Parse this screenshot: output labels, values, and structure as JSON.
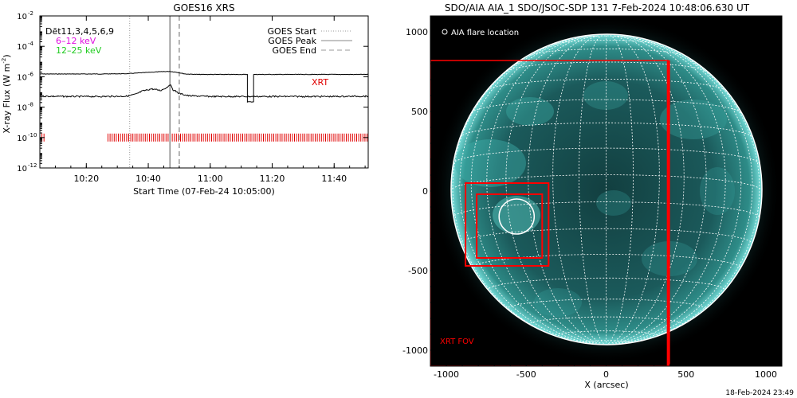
{
  "chart_data": [
    {
      "type": "line",
      "title": "GOES16 XRS",
      "xlabel": "Start Time (07-Feb-24 10:05:00)",
      "ylabel": "X-ray Flux (W m⁻²)",
      "ylabel_base": "X-ray Flux (W m",
      "ylabel_sup": "-2",
      "ylabel_end": ")",
      "y_scale": "log",
      "xlim": [
        "10:05",
        "11:51"
      ],
      "ylim": [
        1e-12,
        0.01
      ],
      "x_ticks": [
        "10:20",
        "10:40",
        "11:00",
        "11:20",
        "11:40"
      ],
      "y_ticks": [
        {
          "value": -12,
          "base": "10",
          "exp": "-12"
        },
        {
          "value": -10,
          "base": "10",
          "exp": "-10"
        },
        {
          "value": -8,
          "base": "10",
          "exp": "-8"
        },
        {
          "value": -6,
          "base": "10",
          "exp": "-6"
        },
        {
          "value": -4,
          "base": "10",
          "exp": "-4"
        },
        {
          "value": -2,
          "base": "10",
          "exp": "-2"
        }
      ],
      "legend_left": [
        {
          "label": "Dēt11,3,4,5,6,9",
          "color": "#000000"
        },
        {
          "label": "6–12 keV",
          "color": "#e010e0"
        },
        {
          "label": "12–25 keV",
          "color": "#22cc22"
        }
      ],
      "legend_right": [
        {
          "label": "GOES Start",
          "style": "dotted",
          "color": "#9a9a9a"
        },
        {
          "label": "GOES Peak",
          "style": "solid",
          "color": "#8a8a8a"
        },
        {
          "label": "GOES End",
          "style": "dashed",
          "color": "#9a9a9a"
        }
      ],
      "event_lines": {
        "start": "10:34",
        "peak": "10:47",
        "end": "10:50"
      },
      "xrt_label": "XRT",
      "xrt_color": "#e00000",
      "xrt_exposures": {
        "segments": [
          [
            "10:05",
            "10:07"
          ],
          [
            "10:27",
            "11:51"
          ]
        ],
        "flux_level": 1e-10
      },
      "series": [
        {
          "name": "",
          "color": "#000000",
          "points": [
            [
              "10:05",
              -5.82
            ],
            [
              "10:15",
              -5.82
            ],
            [
              "10:25",
              -5.82
            ],
            [
              "10:33",
              -5.8
            ],
            [
              "10:37",
              -5.75
            ],
            [
              "10:41",
              -5.7
            ],
            [
              "10:45",
              -5.66
            ],
            [
              "10:47",
              -5.65
            ],
            [
              "10:49",
              -5.7
            ],
            [
              "10:52",
              -5.82
            ],
            [
              "10:56",
              -5.85
            ],
            [
              "11:05",
              -5.85
            ],
            [
              "11:12",
              -5.85
            ],
            [
              "11:12",
              -7.65
            ],
            [
              "11:14",
              -7.65
            ],
            [
              "11:14",
              -5.85
            ],
            [
              "11:30",
              -5.85
            ],
            [
              "11:51",
              -5.85
            ]
          ]
        },
        {
          "name": "",
          "color": "#000000",
          "points": [
            [
              "10:05",
              -7.28
            ],
            [
              "10:15",
              -7.3
            ],
            [
              "10:25",
              -7.3
            ],
            [
              "10:33",
              -7.28
            ],
            [
              "10:36",
              -7.15
            ],
            [
              "10:38",
              -6.95
            ],
            [
              "10:41",
              -6.8
            ],
            [
              "10:44",
              -6.9
            ],
            [
              "10:46",
              -6.7
            ],
            [
              "10:47",
              -6.5
            ],
            [
              "10:48",
              -6.85
            ],
            [
              "10:50",
              -7.1
            ],
            [
              "10:53",
              -7.25
            ],
            [
              "11:00",
              -7.3
            ],
            [
              "11:20",
              -7.3
            ],
            [
              "11:40",
              -7.3
            ],
            [
              "11:51",
              -7.28
            ]
          ]
        }
      ]
    },
    {
      "type": "scatter",
      "title": "SDO/AIA AIA_1 SDO/JSOC-SDP 131  7-Feb-2024 10:48:06.630 UT",
      "xlabel": "X (arcsec)",
      "ylabel": "",
      "xlim": [
        -1100,
        1100
      ],
      "ylim": [
        -1100,
        1100
      ],
      "x_ticks": [
        "-1000",
        "-500",
        "0",
        "500",
        "1000"
      ],
      "y_ticks": [
        "-1000",
        "-500",
        "0",
        "500",
        "1000"
      ],
      "solar_radius_arcsec": 975,
      "legend": "AIA flare location",
      "flare_location": {
        "x": -560,
        "y": -160,
        "radius": 110
      },
      "xrt_fov": {
        "label": "XRT FOV",
        "x": [
          -1100,
          390
        ],
        "y": [
          -1100,
          820
        ]
      },
      "boxes": [
        {
          "x": [
            -880,
            -360
          ],
          "y": [
            -470,
            50
          ]
        },
        {
          "x": [
            -810,
            -400
          ],
          "y": [
            -420,
            -20
          ]
        }
      ],
      "colors": {
        "disk": "#2aa5a0",
        "grid": "#ffffff",
        "box": "#ff0000"
      }
    }
  ],
  "footer": {
    "timestamp": "18-Feb-2024 23:49"
  }
}
